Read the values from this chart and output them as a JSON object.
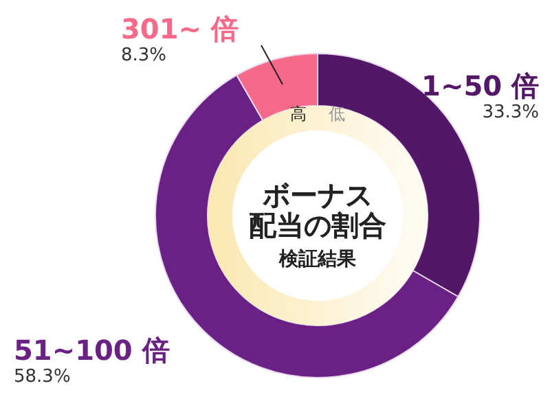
{
  "chart_data": {
    "type": "donut",
    "title": "ボーナス",
    "subtitle": "配当の割合",
    "categories": [
      "1~50 倍",
      "51~100 倍",
      "301~ 倍"
    ],
    "values": [
      33.3,
      58.3,
      8.3
    ],
    "colors": [
      "#521766",
      "#6a2184",
      "#f56a88"
    ],
    "value_labels": [
      "33.3%",
      "58.3%",
      "8.3%"
    ],
    "annotations": [
      "高",
      "低",
      "検証結果"
    ]
  }
}
